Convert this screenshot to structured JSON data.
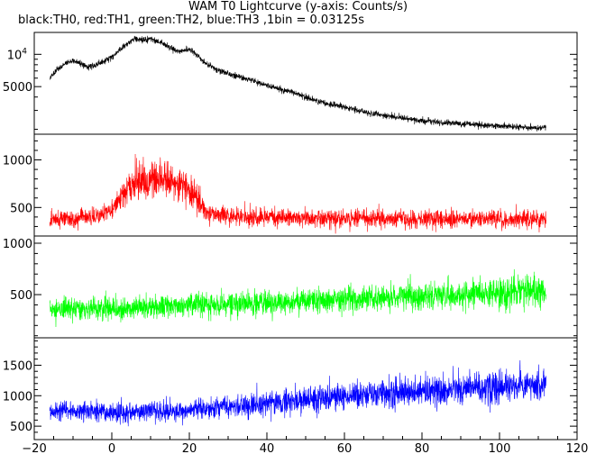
{
  "chart_data": {
    "type": "line",
    "title": "WAM T0 Lightcurve (y-axis: Counts/s)",
    "subtitle": "black:TH0, red:TH1, green:TH2, blue:TH3 ,1bin = 0.03125s",
    "x_ticks": [
      "−20",
      "0",
      "20",
      "40",
      "60",
      "80",
      "100",
      "120"
    ],
    "x_tick_values": [
      -20,
      0,
      20,
      40,
      60,
      80,
      100,
      120
    ],
    "xlim": [
      -20,
      120
    ],
    "x_range_data": [
      -16,
      112
    ],
    "grid": false,
    "panels": [
      {
        "series_name": "TH0",
        "color": "#000000",
        "log_y": true,
        "ylim": [
          1800,
          16000
        ],
        "ytick_labels": [
          {
            "base": "10",
            "exp": "4",
            "value": 10000
          },
          {
            "text": "5000",
            "value": 5000
          }
        ],
        "minor_ticks": [
          2000,
          3000,
          4000,
          6000,
          7000,
          8000,
          9000
        ],
        "profile": [
          [
            -16,
            6000
          ],
          [
            -14,
            7200
          ],
          [
            -12,
            8200
          ],
          [
            -10,
            8700
          ],
          [
            -8,
            8200
          ],
          [
            -6,
            7700
          ],
          [
            -4,
            7900
          ],
          [
            -2,
            8600
          ],
          [
            0,
            9400
          ],
          [
            2,
            11000
          ],
          [
            4,
            12500
          ],
          [
            6,
            14200
          ],
          [
            8,
            13400
          ],
          [
            10,
            13900
          ],
          [
            12,
            13200
          ],
          [
            14,
            12000
          ],
          [
            16,
            11000
          ],
          [
            18,
            10600
          ],
          [
            20,
            11200
          ],
          [
            22,
            9800
          ],
          [
            24,
            8300
          ],
          [
            26,
            7600
          ],
          [
            28,
            7000
          ],
          [
            30,
            6600
          ],
          [
            35,
            5900
          ],
          [
            40,
            5100
          ],
          [
            45,
            4600
          ],
          [
            50,
            4000
          ],
          [
            55,
            3500
          ],
          [
            60,
            3200
          ],
          [
            65,
            2900
          ],
          [
            70,
            2700
          ],
          [
            80,
            2400
          ],
          [
            90,
            2250
          ],
          [
            100,
            2150
          ],
          [
            112,
            2050
          ]
        ],
        "noise": 0.06
      },
      {
        "series_name": "TH1",
        "color": "#ff0000",
        "log_y": false,
        "ylim": [
          200,
          1270
        ],
        "ytick_labels": [
          {
            "text": "1000",
            "value": 1000
          },
          {
            "text": "500",
            "value": 500
          }
        ],
        "minor_ticks": [
          300,
          400,
          600,
          700,
          800,
          900,
          1100,
          1200
        ],
        "profile": [
          [
            -16,
            380
          ],
          [
            -10,
            380
          ],
          [
            -4,
            400
          ],
          [
            0,
            480
          ],
          [
            3,
            640
          ],
          [
            6,
            760
          ],
          [
            9,
            800
          ],
          [
            12,
            800
          ],
          [
            15,
            760
          ],
          [
            18,
            730
          ],
          [
            21,
            640
          ],
          [
            24,
            480
          ],
          [
            27,
            420
          ],
          [
            32,
            400
          ],
          [
            50,
            390
          ],
          [
            80,
            380
          ],
          [
            112,
            380
          ]
        ],
        "noise": 0.22
      },
      {
        "series_name": "TH2",
        "color": "#00ff00",
        "log_y": false,
        "ylim": [
          80,
          1070
        ],
        "ytick_labels": [
          {
            "text": "1000",
            "value": 1000
          },
          {
            "text": "500",
            "value": 500
          }
        ],
        "minor_ticks": [
          100,
          200,
          300,
          400,
          600,
          700,
          800,
          900
        ],
        "profile": [
          [
            -16,
            360
          ],
          [
            0,
            370
          ],
          [
            20,
            390
          ],
          [
            40,
            420
          ],
          [
            60,
            450
          ],
          [
            80,
            490
          ],
          [
            100,
            520
          ],
          [
            112,
            540
          ]
        ],
        "noise": 0.26
      },
      {
        "series_name": "TH3",
        "color": "#0000ff",
        "log_y": false,
        "ylim": [
          280,
          1950
        ],
        "ytick_labels": [
          {
            "text": "1500",
            "value": 1500
          },
          {
            "text": "1000",
            "value": 1000
          },
          {
            "text": "500",
            "value": 500
          }
        ],
        "minor_ticks": [
          400,
          600,
          700,
          800,
          900,
          1100,
          1200,
          1300,
          1400,
          1600,
          1700,
          1800,
          1900
        ],
        "profile": [
          [
            -16,
            740
          ],
          [
            0,
            730
          ],
          [
            20,
            760
          ],
          [
            40,
            870
          ],
          [
            60,
            990
          ],
          [
            80,
            1080
          ],
          [
            100,
            1150
          ],
          [
            112,
            1170
          ]
        ],
        "noise": 0.2
      }
    ]
  }
}
